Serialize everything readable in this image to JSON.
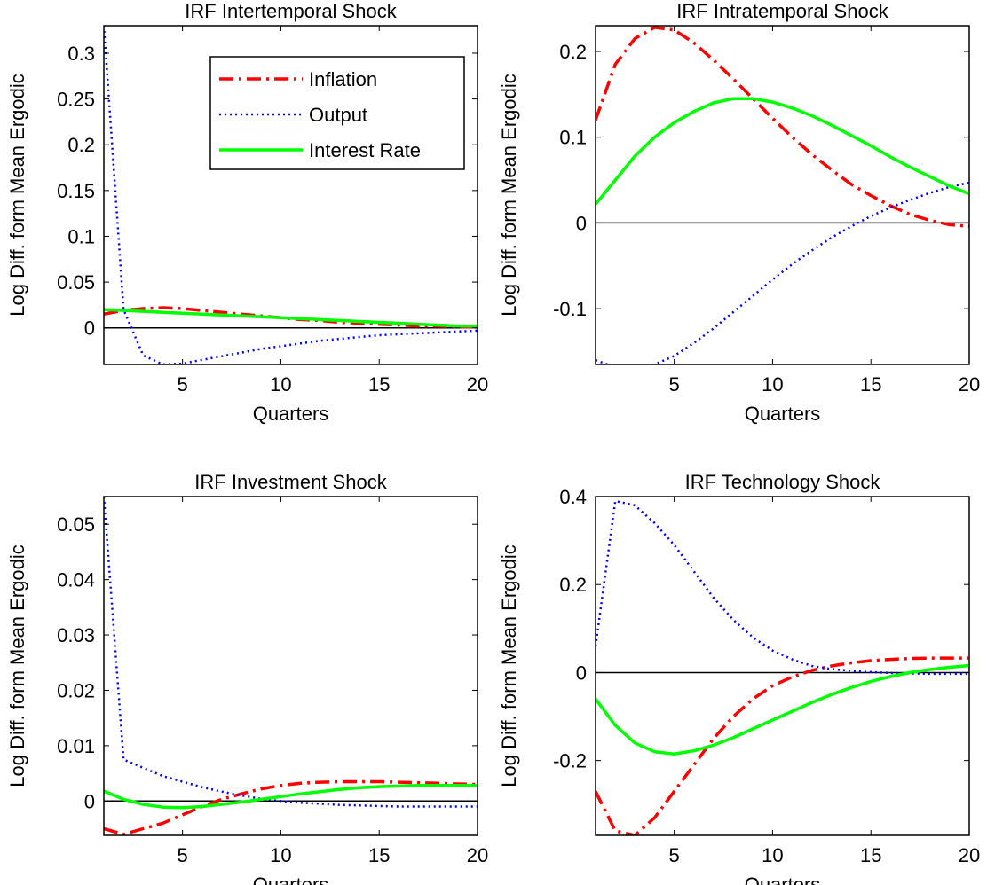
{
  "figure": {
    "background": "#ffffff",
    "colors": {
      "Inflation": "#ff0000",
      "Output": "#0000ff",
      "Interest Rate": "#00ff00",
      "zero_line": "#000000"
    }
  },
  "chart_data": [
    {
      "type": "line",
      "title": "IRF Intertemporal Shock",
      "xlabel": "Quarters",
      "ylabel": "Log Diff. form Mean Ergodic",
      "xlim": [
        1,
        20
      ],
      "ylim": [
        -0.04,
        0.33
      ],
      "xticks": [
        5,
        10,
        15,
        20
      ],
      "yticks": [
        0,
        0.05,
        0.1,
        0.15,
        0.2,
        0.25,
        0.3
      ],
      "ytick_labels": [
        "0",
        "0.05",
        "0.1",
        "0.15",
        "0.2",
        "0.25",
        "0.3"
      ],
      "legend": {
        "position": "top-right",
        "entries": [
          "Inflation",
          "Output",
          "Interest Rate"
        ]
      },
      "grid": false,
      "x": [
        1,
        2,
        3,
        4,
        5,
        6,
        7,
        8,
        9,
        10,
        11,
        12,
        13,
        14,
        15,
        16,
        17,
        18,
        19,
        20
      ],
      "series": [
        {
          "name": "Inflation",
          "style": "dash-dot",
          "values": [
            0.015,
            0.019,
            0.021,
            0.022,
            0.021,
            0.019,
            0.017,
            0.015,
            0.013,
            0.011,
            0.009,
            0.008,
            0.006,
            0.005,
            0.004,
            0.003,
            0.002,
            0.002,
            0.001,
            0.001
          ]
        },
        {
          "name": "Output",
          "style": "dotted",
          "values": [
            0.33,
            0.02,
            -0.03,
            -0.04,
            -0.039,
            -0.035,
            -0.031,
            -0.027,
            -0.023,
            -0.02,
            -0.017,
            -0.014,
            -0.012,
            -0.01,
            -0.008,
            -0.007,
            -0.006,
            -0.005,
            -0.004,
            -0.003
          ]
        },
        {
          "name": "Interest Rate",
          "style": "solid",
          "values": [
            0.02,
            0.019,
            0.018,
            0.017,
            0.016,
            0.015,
            0.014,
            0.013,
            0.012,
            0.011,
            0.01,
            0.009,
            0.008,
            0.007,
            0.006,
            0.005,
            0.004,
            0.003,
            0.002,
            0.002
          ]
        }
      ]
    },
    {
      "type": "line",
      "title": "IRF Intratemporal Shock",
      "xlabel": "Quarters",
      "ylabel": "Log Diff. form Mean Ergodic",
      "xlim": [
        1,
        20
      ],
      "ylim": [
        -0.165,
        0.23
      ],
      "xticks": [
        5,
        10,
        15,
        20
      ],
      "yticks": [
        -0.1,
        0,
        0.1,
        0.2
      ],
      "ytick_labels": [
        "-0.1",
        "0",
        "0.1",
        "0.2"
      ],
      "grid": false,
      "x": [
        1,
        2,
        3,
        4,
        5,
        6,
        7,
        8,
        9,
        10,
        11,
        12,
        13,
        14,
        15,
        16,
        17,
        18,
        19,
        20
      ],
      "series": [
        {
          "name": "Inflation",
          "style": "dash-dot",
          "values": [
            0.12,
            0.185,
            0.215,
            0.228,
            0.225,
            0.21,
            0.19,
            0.168,
            0.145,
            0.122,
            0.1,
            0.08,
            0.062,
            0.045,
            0.032,
            0.02,
            0.01,
            0.003,
            -0.002,
            -0.004
          ]
        },
        {
          "name": "Output",
          "style": "dotted",
          "values": [
            -0.16,
            -0.168,
            -0.17,
            -0.165,
            -0.155,
            -0.14,
            -0.123,
            -0.104,
            -0.085,
            -0.066,
            -0.048,
            -0.032,
            -0.017,
            -0.004,
            0.008,
            0.018,
            0.027,
            0.035,
            0.042,
            0.047
          ]
        },
        {
          "name": "Interest Rate",
          "style": "solid",
          "values": [
            0.022,
            0.05,
            0.078,
            0.1,
            0.117,
            0.13,
            0.14,
            0.145,
            0.145,
            0.141,
            0.134,
            0.125,
            0.114,
            0.102,
            0.09,
            0.077,
            0.065,
            0.054,
            0.043,
            0.034
          ]
        }
      ]
    },
    {
      "type": "line",
      "title": "IRF Investment Shock",
      "xlabel": "Quarters",
      "ylabel": "Log Diff. form Mean Ergodic",
      "xlim": [
        1,
        20
      ],
      "ylim": [
        -0.0062,
        0.055
      ],
      "xticks": [
        5,
        10,
        15,
        20
      ],
      "yticks": [
        0,
        0.01,
        0.02,
        0.03,
        0.04,
        0.05
      ],
      "ytick_labels": [
        "0",
        "0.01",
        "0.02",
        "0.03",
        "0.04",
        "0.05"
      ],
      "grid": false,
      "x": [
        1,
        2,
        3,
        4,
        5,
        6,
        7,
        8,
        9,
        10,
        11,
        12,
        13,
        14,
        15,
        16,
        17,
        18,
        19,
        20
      ],
      "series": [
        {
          "name": "Inflation",
          "style": "dash-dot",
          "values": [
            -0.005,
            -0.006,
            -0.005,
            -0.004,
            -0.0025,
            -0.001,
            0.0003,
            0.0013,
            0.0022,
            0.0028,
            0.0032,
            0.0034,
            0.0035,
            0.0035,
            0.0035,
            0.0034,
            0.0033,
            0.0032,
            0.0031,
            0.003
          ]
        },
        {
          "name": "Output",
          "style": "dotted",
          "values": [
            0.055,
            0.0075,
            0.006,
            0.0045,
            0.0035,
            0.0025,
            0.0017,
            0.001,
            0.0004,
            0.0,
            -0.0003,
            -0.0005,
            -0.0007,
            -0.0008,
            -0.0009,
            -0.001,
            -0.001,
            -0.001,
            -0.001,
            -0.001
          ]
        },
        {
          "name": "Interest Rate",
          "style": "solid",
          "values": [
            0.0018,
            0.0003,
            -0.0006,
            -0.0011,
            -0.0012,
            -0.001,
            -0.0006,
            -0.0002,
            0.0003,
            0.0008,
            0.0013,
            0.0017,
            0.0021,
            0.0024,
            0.0026,
            0.0027,
            0.0028,
            0.0028,
            0.0028,
            0.0028
          ]
        }
      ]
    },
    {
      "type": "line",
      "title": "IRF Technology Shock",
      "xlabel": "Quarters",
      "ylabel": "Log Diff. form Mean Ergodic",
      "xlim": [
        1,
        20
      ],
      "ylim": [
        -0.37,
        0.4
      ],
      "xticks": [
        5,
        10,
        15,
        20
      ],
      "yticks": [
        -0.2,
        0,
        0.2,
        0.4
      ],
      "ytick_labels": [
        "-0.2",
        "0",
        "0.2",
        "0.4"
      ],
      "grid": false,
      "x": [
        1,
        2,
        3,
        4,
        5,
        6,
        7,
        8,
        9,
        10,
        11,
        12,
        13,
        14,
        15,
        16,
        17,
        18,
        19,
        20
      ],
      "series": [
        {
          "name": "Inflation",
          "style": "dash-dot",
          "values": [
            -0.27,
            -0.36,
            -0.37,
            -0.33,
            -0.27,
            -0.21,
            -0.15,
            -0.1,
            -0.06,
            -0.03,
            -0.01,
            0.005,
            0.015,
            0.022,
            0.027,
            0.03,
            0.032,
            0.033,
            0.033,
            0.033
          ]
        },
        {
          "name": "Output",
          "style": "dotted",
          "values": [
            0.06,
            0.39,
            0.38,
            0.34,
            0.29,
            0.23,
            0.17,
            0.12,
            0.08,
            0.05,
            0.03,
            0.015,
            0.008,
            0.004,
            0.001,
            -0.001,
            -0.002,
            -0.003,
            -0.003,
            -0.003
          ]
        },
        {
          "name": "Interest Rate",
          "style": "solid",
          "values": [
            -0.06,
            -0.12,
            -0.16,
            -0.18,
            -0.185,
            -0.178,
            -0.165,
            -0.148,
            -0.128,
            -0.108,
            -0.088,
            -0.068,
            -0.05,
            -0.034,
            -0.02,
            -0.009,
            0.0,
            0.007,
            0.012,
            0.016
          ]
        }
      ]
    }
  ]
}
